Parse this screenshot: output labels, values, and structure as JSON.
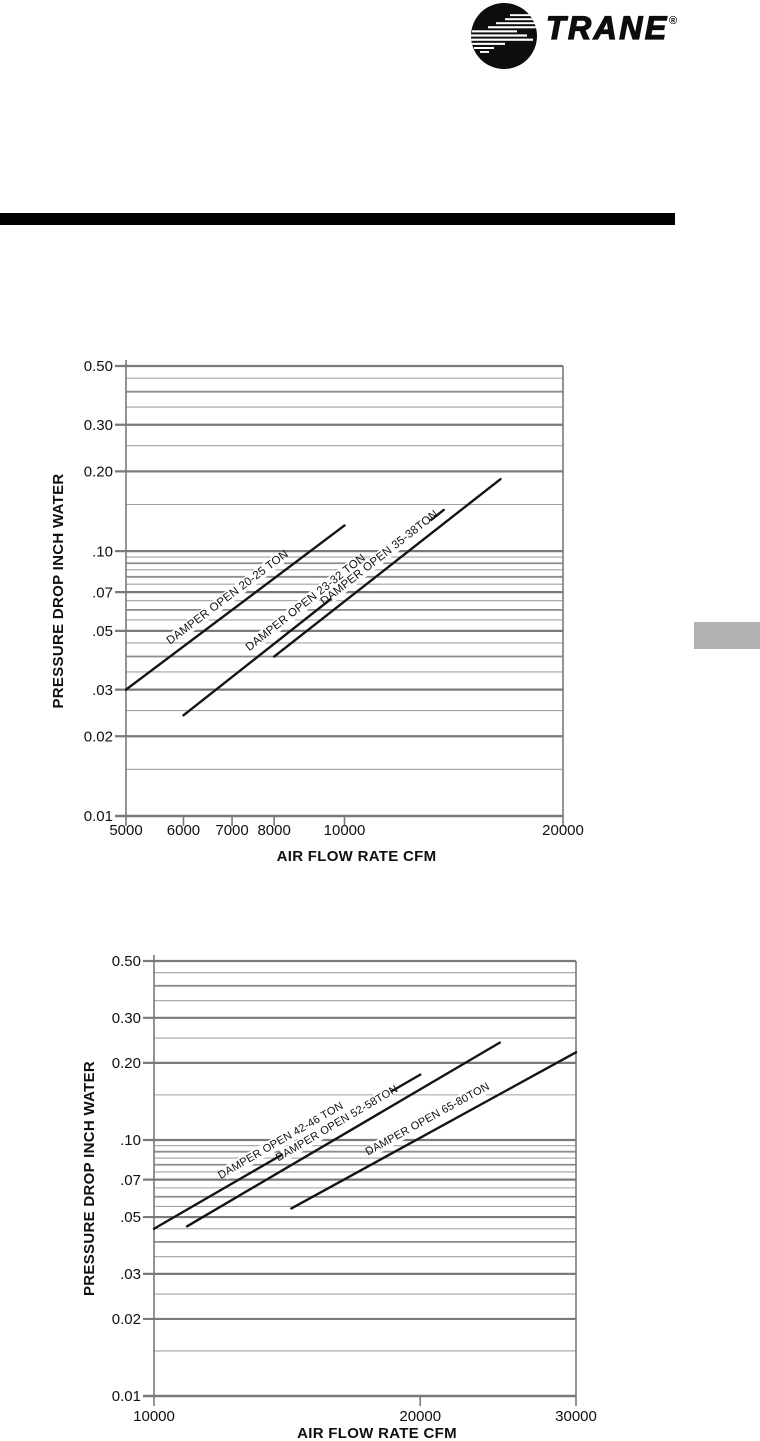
{
  "brand": {
    "name": "TRANE",
    "registered": "®"
  },
  "colors": {
    "grid_major": "#7a7a7a",
    "grid_medium": "#8c8c8c",
    "grid_minor": "#a0a0a0",
    "data_line": "#141414",
    "divider_bar": "#000000",
    "edge_tab": "#b1b1b1",
    "text": "#101010"
  },
  "chart_data": [
    {
      "type": "line",
      "title": "",
      "xlabel": "AIR FLOW RATE CFM",
      "ylabel": "PRESSURE DROP INCH WATER",
      "xscale": "log",
      "yscale": "log",
      "xlim": [
        5000,
        20000
      ],
      "ylim": [
        0.01,
        0.5
      ],
      "grid": "horizontal-only",
      "legend": "labels-along-lines",
      "x_ticks": [
        {
          "v": 5000,
          "label": "5000"
        },
        {
          "v": 6000,
          "label": "6000"
        },
        {
          "v": 7000,
          "label": "7000"
        },
        {
          "v": 8000,
          "label": "8000"
        },
        {
          "v": 10000,
          "label": "10000"
        },
        {
          "v": 20000,
          "label": "20000"
        }
      ],
      "y_ticks": [
        {
          "v": 0.5,
          "label": "0.50"
        },
        {
          "v": 0.3,
          "label": "0.30"
        },
        {
          "v": 0.2,
          "label": "0.20"
        },
        {
          "v": 0.1,
          "label": ".10"
        },
        {
          "v": 0.07,
          "label": ".07"
        },
        {
          "v": 0.05,
          "label": ".05"
        },
        {
          "v": 0.03,
          "label": ".03"
        },
        {
          "v": 0.02,
          "label": "0.02"
        },
        {
          "v": 0.01,
          "label": "0.01"
        }
      ],
      "y_minor_medium": [
        0.04,
        0.06,
        0.08,
        0.09,
        0.4
      ],
      "y_minor": [
        0.015,
        0.025,
        0.035,
        0.045,
        0.055,
        0.065,
        0.075,
        0.085,
        0.095,
        0.15,
        0.25,
        0.35,
        0.45
      ],
      "series": [
        {
          "name": "DAMPER OPEN 20-25 TON",
          "x": [
            5000,
            10000
          ],
          "y": [
            0.03,
            0.125
          ]
        },
        {
          "name": "DAMPER OPEN 23-32 TON",
          "x": [
            6000,
            13700
          ],
          "y": [
            0.024,
            0.143
          ]
        },
        {
          "name": "DAMPER OPEN 35-38TON",
          "x": [
            8000,
            16400
          ],
          "y": [
            0.04,
            0.187
          ]
        }
      ]
    },
    {
      "type": "line",
      "title": "",
      "xlabel": "AIR FLOW RATE CFM",
      "ylabel": "PRESSURE DROP INCH WATER",
      "xscale": "log",
      "yscale": "log",
      "xlim": [
        10000,
        30000
      ],
      "ylim": [
        0.01,
        0.5
      ],
      "grid": "horizontal-only",
      "legend": "labels-along-lines",
      "x_ticks": [
        {
          "v": 10000,
          "label": "10000"
        },
        {
          "v": 20000,
          "label": "20000"
        },
        {
          "v": 30000,
          "label": "30000"
        }
      ],
      "y_ticks": [
        {
          "v": 0.5,
          "label": "0.50"
        },
        {
          "v": 0.3,
          "label": "0.30"
        },
        {
          "v": 0.2,
          "label": "0.20"
        },
        {
          "v": 0.1,
          "label": ".10"
        },
        {
          "v": 0.07,
          "label": ".07"
        },
        {
          "v": 0.05,
          "label": ".05"
        },
        {
          "v": 0.03,
          "label": ".03"
        },
        {
          "v": 0.02,
          "label": "0.02"
        },
        {
          "v": 0.01,
          "label": "0.01"
        }
      ],
      "y_minor_medium": [
        0.04,
        0.06,
        0.08,
        0.09,
        0.4
      ],
      "y_minor": [
        0.015,
        0.025,
        0.035,
        0.045,
        0.055,
        0.065,
        0.075,
        0.085,
        0.095,
        0.15,
        0.25,
        0.35,
        0.45
      ],
      "series": [
        {
          "name": "DAMPER OPEN 42-46 TON",
          "x": [
            10000,
            20000
          ],
          "y": [
            0.045,
            0.18
          ]
        },
        {
          "name": "DAMPER OPEN 52-58TON",
          "x": [
            10900,
            24600
          ],
          "y": [
            0.046,
            0.24
          ]
        },
        {
          "name": "DAMPER OPEN 65-80TON",
          "x": [
            14300,
            30000
          ],
          "y": [
            0.054,
            0.22
          ]
        }
      ]
    }
  ]
}
